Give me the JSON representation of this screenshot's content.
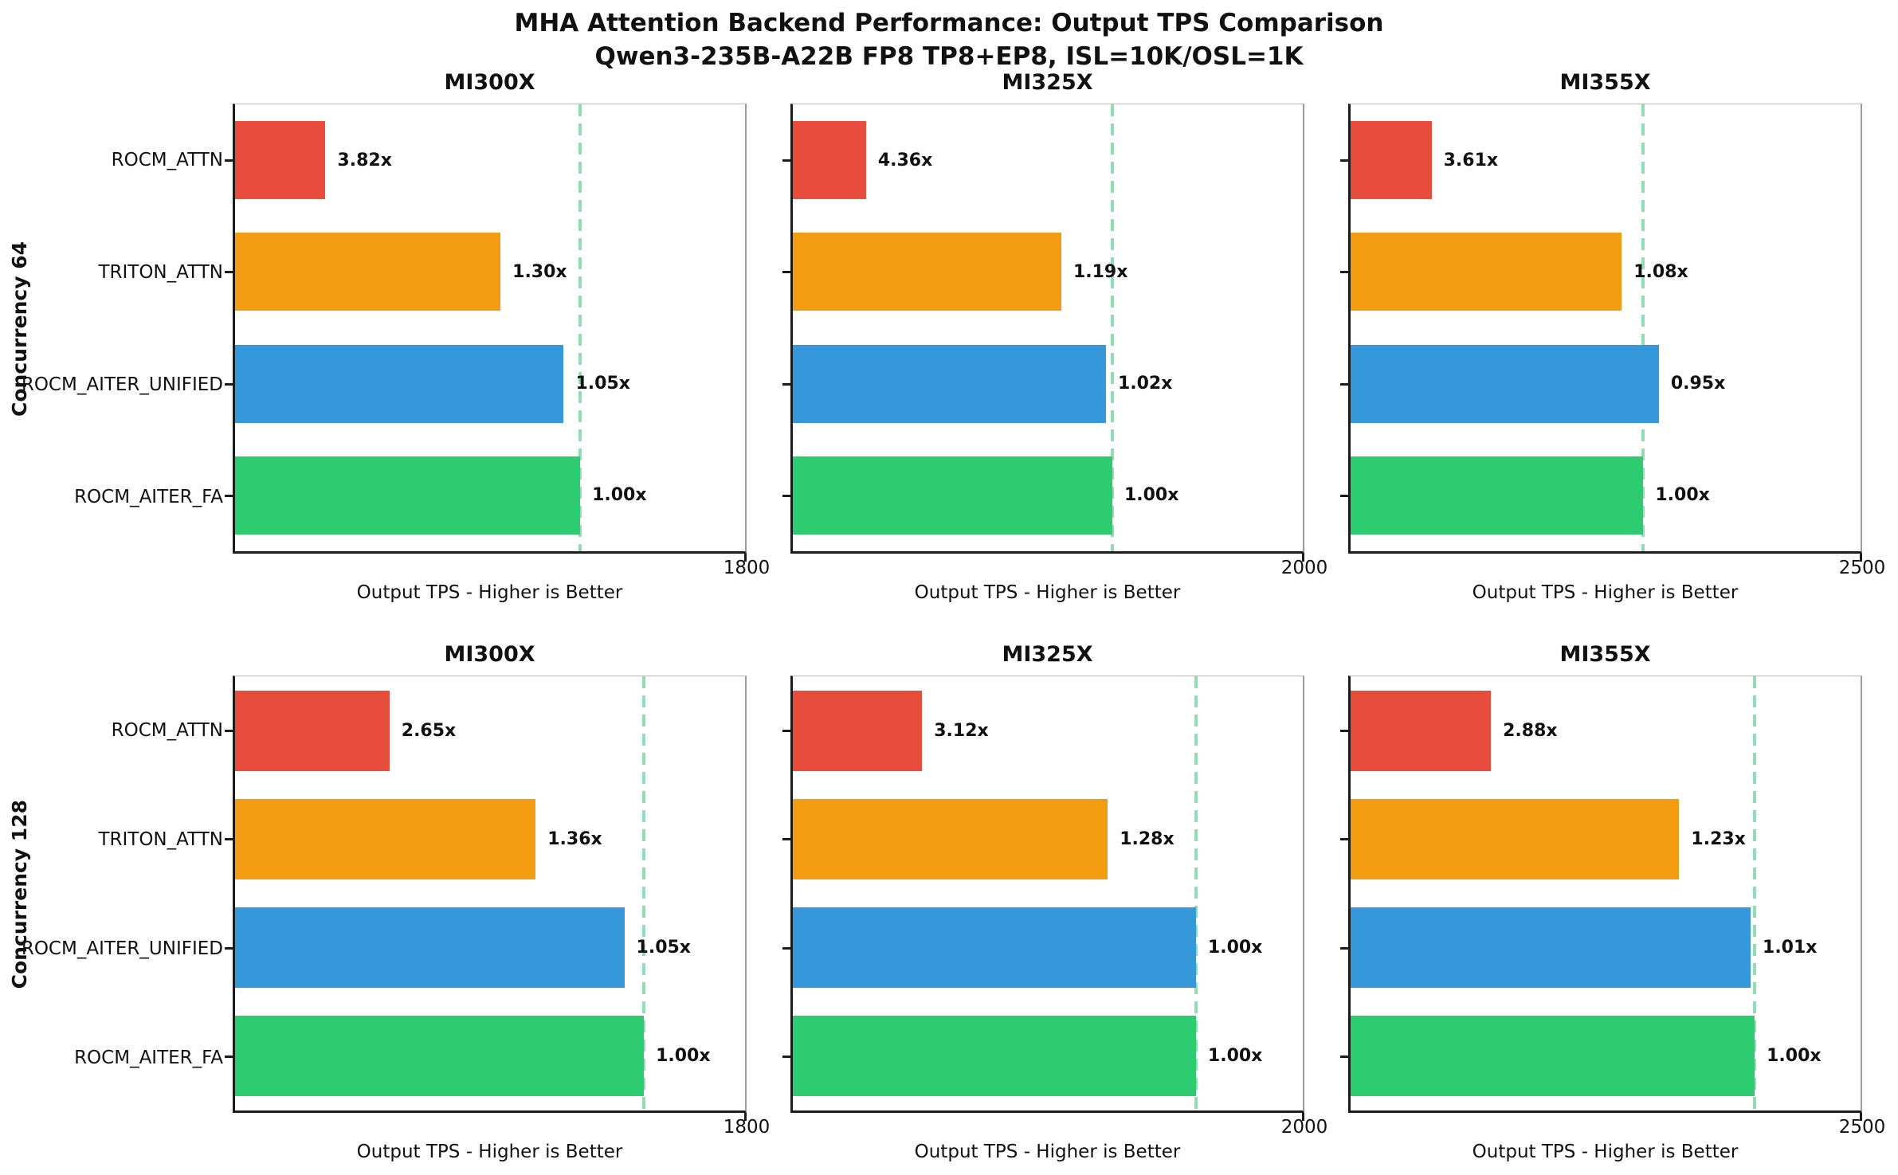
{
  "title": {
    "line1": "MHA Attention Backend Performance: Output TPS Comparison",
    "line2": "Qwen3-235B-A22B FP8 TP8+EP8, ISL=10K/OSL=1K"
  },
  "xlabel": "Output TPS - Higher is Better",
  "categories": [
    "ROCM_ATTN",
    "TRITON_ATTN",
    "ROCM_AITER_UNIFIED",
    "ROCM_AITER_FA"
  ],
  "row_labels": {
    "row1": "Concurrency 64",
    "row2": "Concurrency 128"
  },
  "colors": {
    "bars": [
      "#e74c3c",
      "#f39c12",
      "#3498db",
      "#2ecc71"
    ],
    "baseline": "#90dfb2",
    "spine": "#1c1c1c"
  },
  "chart_data": [
    {
      "type": "bar",
      "row": "Concurrency 64",
      "gpu": "MI300X",
      "xmax": 1800,
      "xmax_label": "1800",
      "baseline_tps": 1218,
      "bars": [
        {
          "backend": "ROCM_ATTN",
          "label": "3.82x",
          "ratio": 3.82,
          "tps": 319
        },
        {
          "backend": "TRITON_ATTN",
          "label": "1.30x",
          "ratio": 1.3,
          "tps": 937
        },
        {
          "backend": "ROCM_AITER_UNIFIED",
          "label": "1.05x",
          "ratio": 1.05,
          "tps": 1160
        },
        {
          "backend": "ROCM_AITER_FA",
          "label": "1.00x",
          "ratio": 1.0,
          "tps": 1218
        }
      ]
    },
    {
      "type": "bar",
      "row": "Concurrency 64",
      "gpu": "MI325X",
      "xmax": 2000,
      "xmax_label": "2000",
      "baseline_tps": 1253,
      "bars": [
        {
          "backend": "ROCM_ATTN",
          "label": "4.36x",
          "ratio": 4.36,
          "tps": 287
        },
        {
          "backend": "TRITON_ATTN",
          "label": "1.19x",
          "ratio": 1.19,
          "tps": 1053
        },
        {
          "backend": "ROCM_AITER_UNIFIED",
          "label": "1.02x",
          "ratio": 1.02,
          "tps": 1228
        },
        {
          "backend": "ROCM_AITER_FA",
          "label": "1.00x",
          "ratio": 1.0,
          "tps": 1253
        }
      ]
    },
    {
      "type": "bar",
      "row": "Concurrency 64",
      "gpu": "MI355X",
      "xmax": 2500,
      "xmax_label": "2500",
      "baseline_tps": 1435,
      "bars": [
        {
          "backend": "ROCM_ATTN",
          "label": "3.61x",
          "ratio": 3.61,
          "tps": 397
        },
        {
          "backend": "TRITON_ATTN",
          "label": "1.08x",
          "ratio": 1.08,
          "tps": 1329
        },
        {
          "backend": "ROCM_AITER_UNIFIED",
          "label": "0.95x",
          "ratio": 0.95,
          "tps": 1511
        },
        {
          "backend": "ROCM_AITER_FA",
          "label": "1.00x",
          "ratio": 1.0,
          "tps": 1435
        }
      ]
    },
    {
      "type": "bar",
      "row": "Concurrency 128",
      "gpu": "MI300X",
      "xmax": 1800,
      "xmax_label": "1800",
      "baseline_tps": 1443,
      "bars": [
        {
          "backend": "ROCM_ATTN",
          "label": "2.65x",
          "ratio": 2.65,
          "tps": 545
        },
        {
          "backend": "TRITON_ATTN",
          "label": "1.36x",
          "ratio": 1.36,
          "tps": 1061
        },
        {
          "backend": "ROCM_AITER_UNIFIED",
          "label": "1.05x",
          "ratio": 1.05,
          "tps": 1374
        },
        {
          "backend": "ROCM_AITER_FA",
          "label": "1.00x",
          "ratio": 1.0,
          "tps": 1443
        }
      ]
    },
    {
      "type": "bar",
      "row": "Concurrency 128",
      "gpu": "MI325X",
      "xmax": 2000,
      "xmax_label": "2000",
      "baseline_tps": 1581,
      "bars": [
        {
          "backend": "ROCM_ATTN",
          "label": "3.12x",
          "ratio": 3.12,
          "tps": 507
        },
        {
          "backend": "TRITON_ATTN",
          "label": "1.28x",
          "ratio": 1.28,
          "tps": 1235
        },
        {
          "backend": "ROCM_AITER_UNIFIED",
          "label": "1.00x",
          "ratio": 1.0,
          "tps": 1581
        },
        {
          "backend": "ROCM_AITER_FA",
          "label": "1.00x",
          "ratio": 1.0,
          "tps": 1581
        }
      ]
    },
    {
      "type": "bar",
      "row": "Concurrency 128",
      "gpu": "MI355X",
      "xmax": 2500,
      "xmax_label": "2500",
      "baseline_tps": 1981,
      "bars": [
        {
          "backend": "ROCM_ATTN",
          "label": "2.88x",
          "ratio": 2.88,
          "tps": 688
        },
        {
          "backend": "TRITON_ATTN",
          "label": "1.23x",
          "ratio": 1.23,
          "tps": 1611
        },
        {
          "backend": "ROCM_AITER_UNIFIED",
          "label": "1.01x",
          "ratio": 1.01,
          "tps": 1961
        },
        {
          "backend": "ROCM_AITER_FA",
          "label": "1.00x",
          "ratio": 1.0,
          "tps": 1981
        }
      ]
    }
  ]
}
